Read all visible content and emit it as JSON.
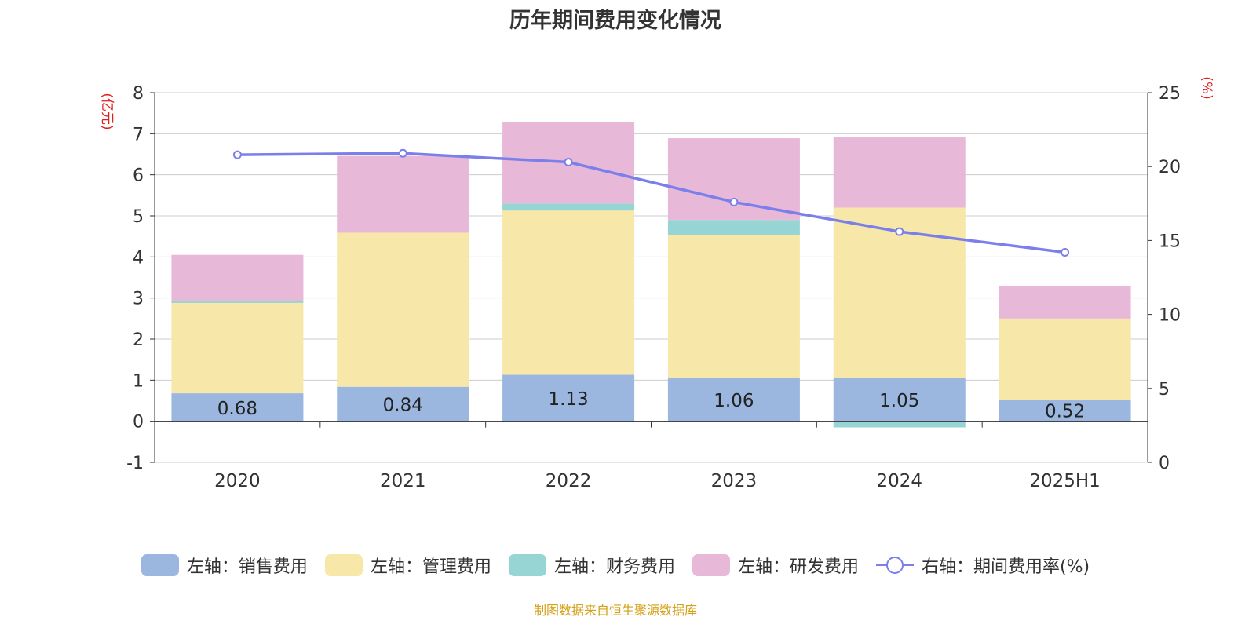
{
  "chart_data": {
    "type": "bar",
    "stacked": true,
    "title": "历年期间费用变化情况",
    "categories": [
      "2020",
      "2021",
      "2022",
      "2023",
      "2024",
      "2025H1"
    ],
    "y_left": {
      "label": "(亿元)",
      "ylim": [
        -1,
        8
      ],
      "ticks": [
        "-1",
        "0",
        "1",
        "2",
        "3",
        "4",
        "5",
        "6",
        "7",
        "8"
      ]
    },
    "y_right": {
      "label": "(%)",
      "ylim": [
        0,
        25
      ],
      "ticks": [
        "0",
        "5",
        "10",
        "15",
        "20",
        "25"
      ]
    },
    "grid": true,
    "legend_position": "bottom",
    "series": [
      {
        "name": "左轴：销售费用",
        "axis": "left",
        "color": "#9bb7e0",
        "values": [
          0.68,
          0.84,
          1.13,
          1.06,
          1.05,
          0.52
        ],
        "labels": [
          "0.68",
          "0.84",
          "1.13",
          "1.06",
          "1.05",
          "0.52"
        ]
      },
      {
        "name": "左轴：管理费用",
        "axis": "left",
        "color": "#f7e7a8",
        "values": [
          2.2,
          3.75,
          4.0,
          3.47,
          4.15,
          1.98
        ]
      },
      {
        "name": "左轴：财务费用",
        "axis": "left",
        "color": "#97d4d4",
        "values": [
          0.05,
          0.0,
          0.17,
          0.37,
          -0.15,
          0.0
        ]
      },
      {
        "name": "左轴：研发费用",
        "axis": "left",
        "color": "#e8b8d8",
        "values": [
          1.12,
          1.87,
          1.99,
          1.99,
          1.72,
          0.8
        ]
      },
      {
        "name": "右轴：期间费用率(%)",
        "axis": "right",
        "type": "line",
        "color": "#7b7fea",
        "values": [
          20.8,
          20.9,
          20.3,
          17.6,
          15.6,
          14.2
        ]
      }
    ]
  },
  "footer": {
    "source": "制图数据来自恒生聚源数据库"
  }
}
